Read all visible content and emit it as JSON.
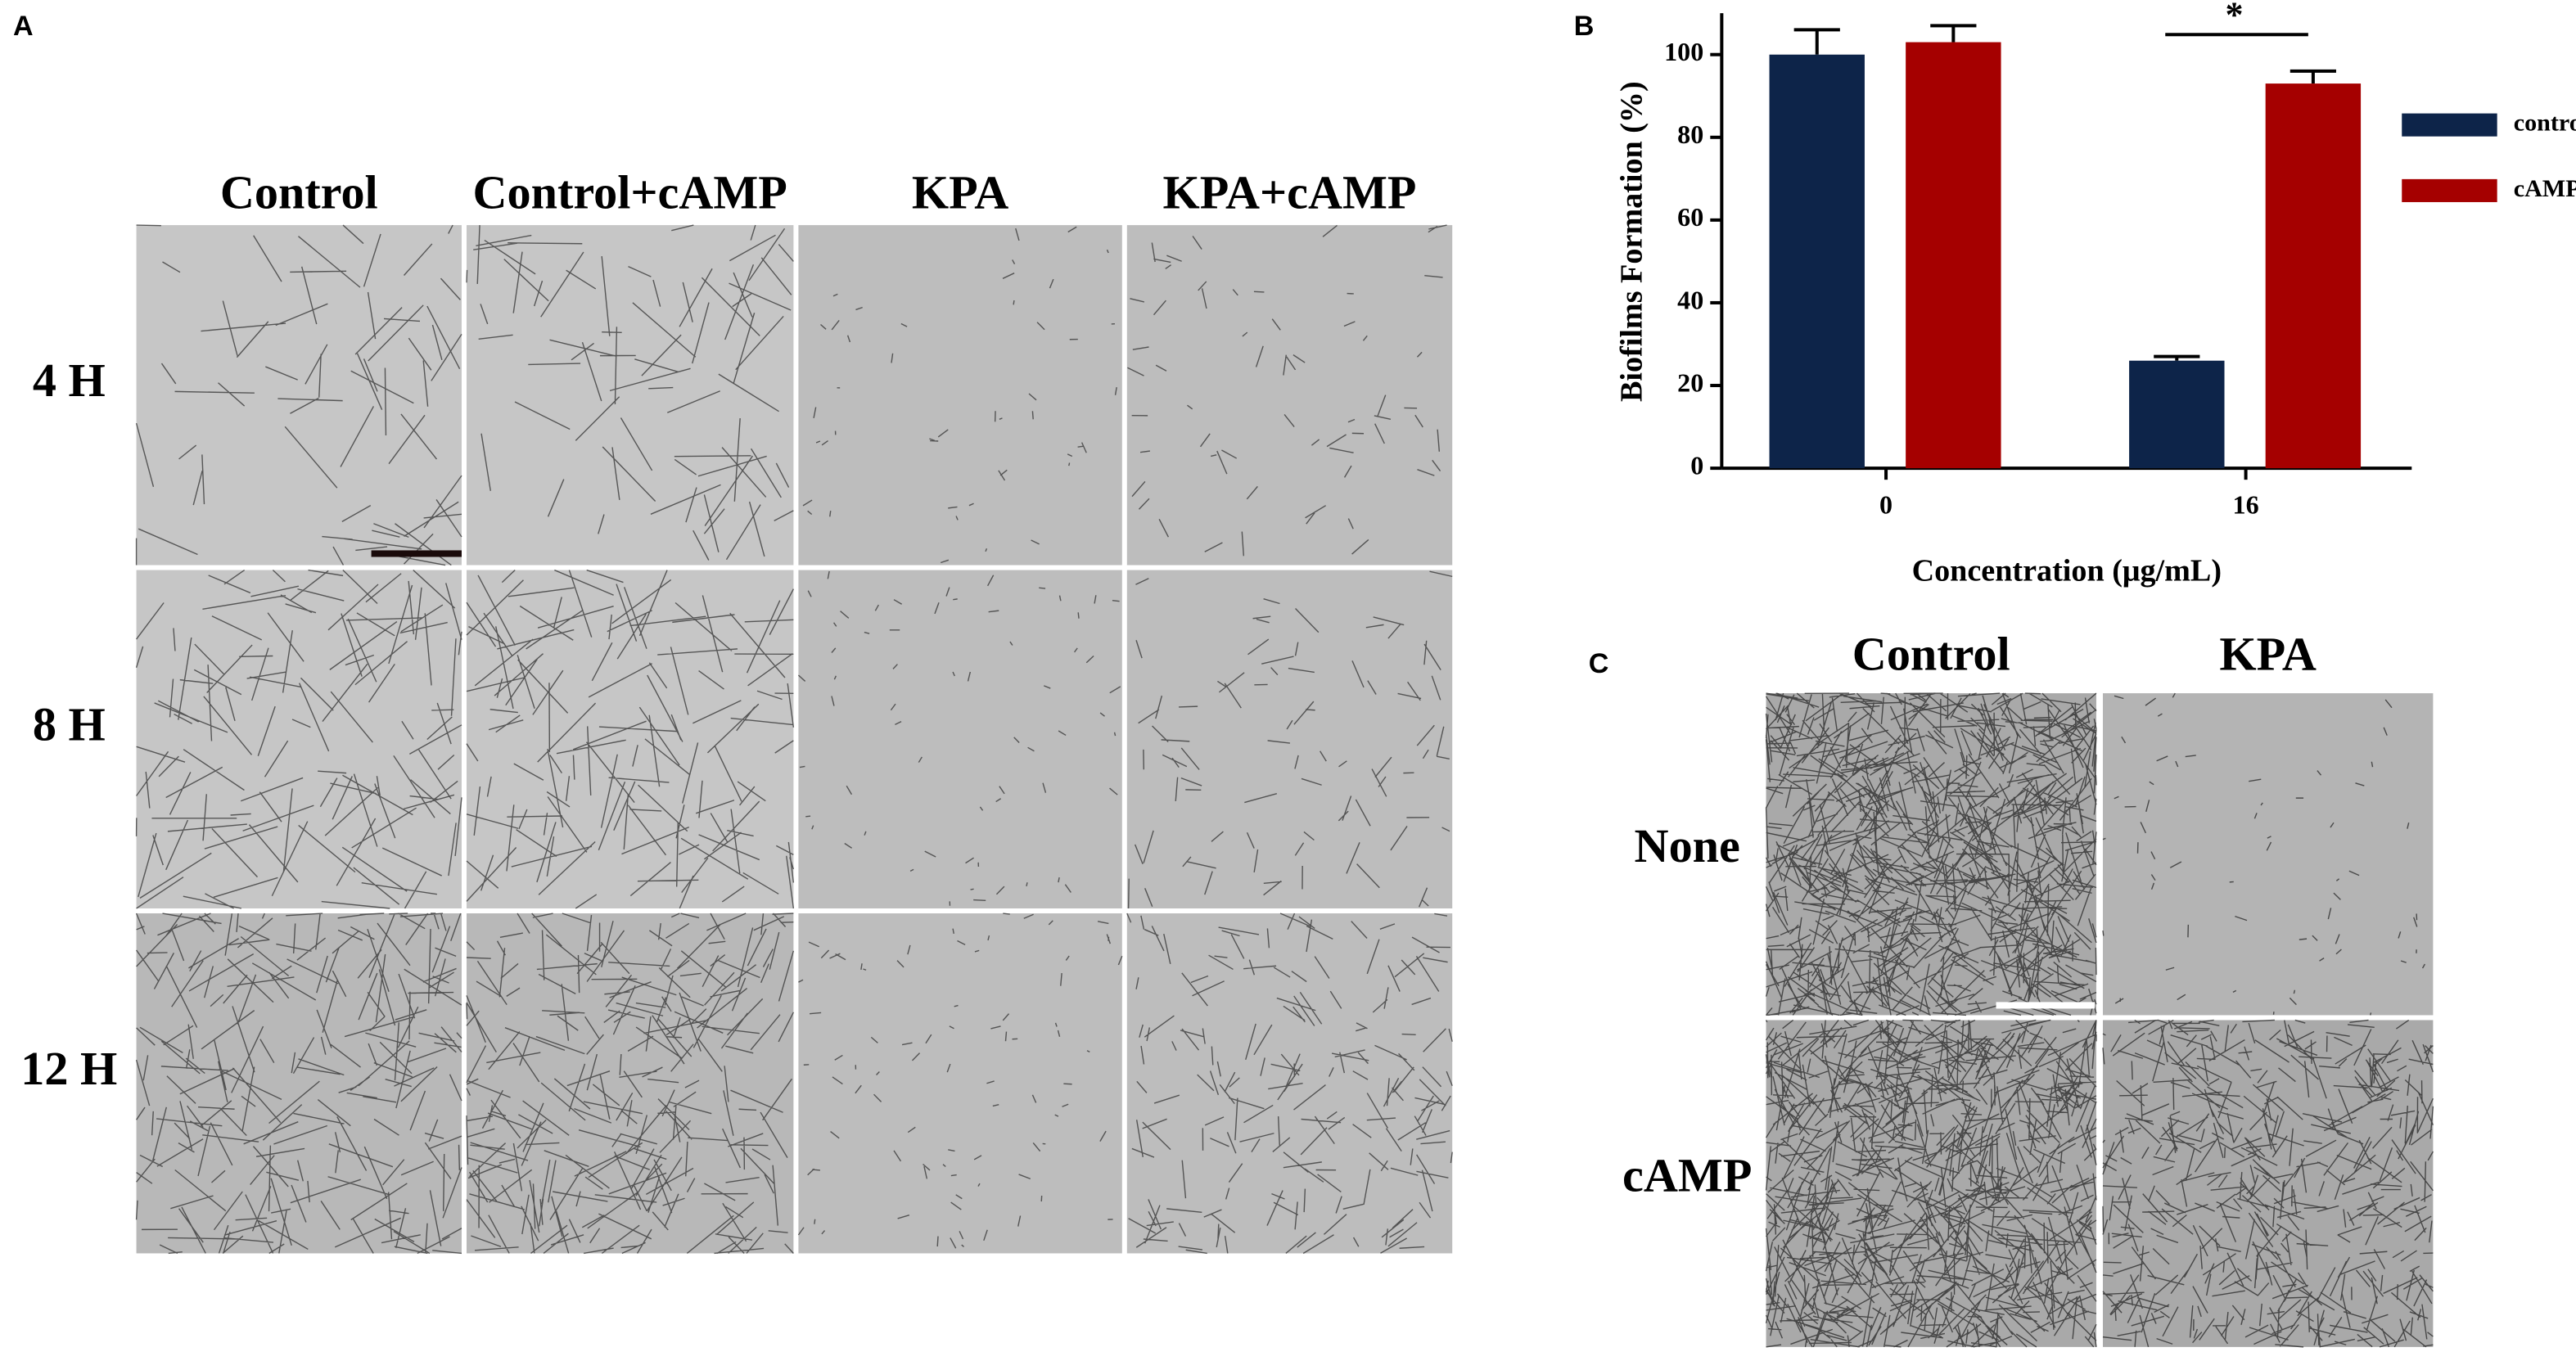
{
  "panels": {
    "A": {
      "label": "A",
      "columns": [
        "Control",
        "Control+cAMP",
        "KPA",
        "KPA+cAMP"
      ],
      "rows": [
        "4 H",
        "8 H",
        "12 H"
      ]
    },
    "C": {
      "label": "C",
      "columns": [
        "Control",
        "KPA"
      ],
      "rows": [
        "None",
        "cAMP"
      ]
    }
  },
  "chart_data": {
    "type": "bar",
    "panel_label": "B",
    "categories": [
      "0",
      "16"
    ],
    "series": [
      {
        "name": "control",
        "color": "#0d2449",
        "values": [
          100,
          26
        ],
        "errors": [
          6,
          1
        ]
      },
      {
        "name": "cAMP",
        "color": "#a50000",
        "values": [
          103,
          93
        ],
        "errors": [
          4,
          3
        ]
      }
    ],
    "xlabel": "Concentration (μg/mL)",
    "ylabel": "Biofilms Formation (%)",
    "ylim": [
      0,
      110
    ],
    "yticks": [
      0,
      20,
      40,
      60,
      80,
      100
    ],
    "annotation": "*",
    "legend": "right"
  }
}
